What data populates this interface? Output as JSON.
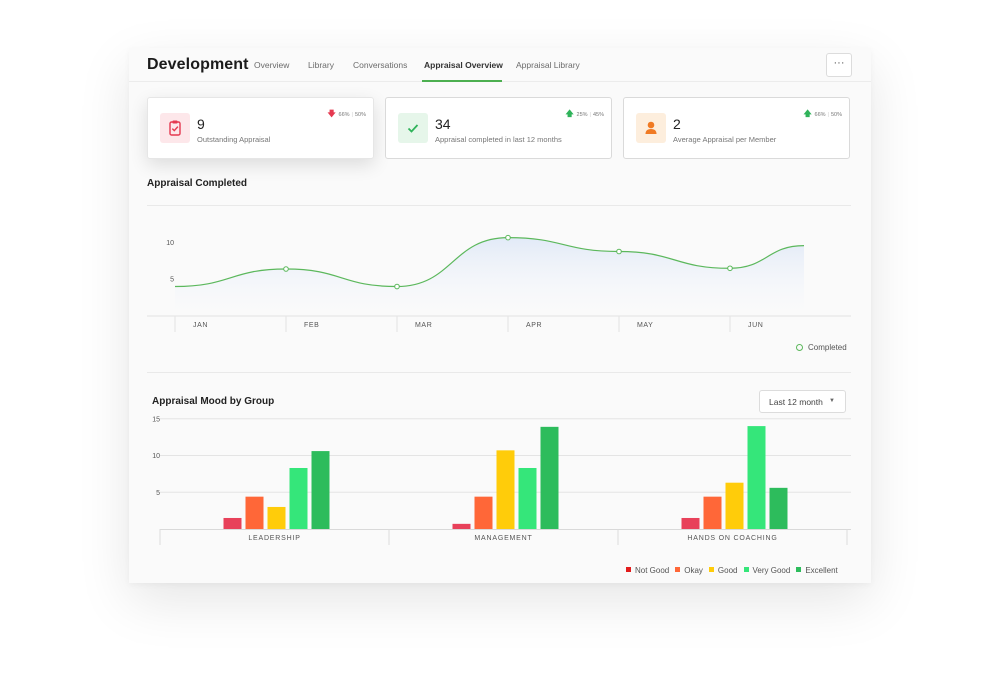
{
  "header": {
    "title": "Development",
    "more_label": "···",
    "tabs": [
      {
        "label": "Overview",
        "active": false
      },
      {
        "label": "Library",
        "active": false
      },
      {
        "label": "Conversations",
        "active": false
      },
      {
        "label": "Appraisal Overview",
        "active": true
      },
      {
        "label": "Appraisal Library",
        "active": false
      }
    ]
  },
  "kpis": [
    {
      "value": "9",
      "label": "Outstanding Appraisal",
      "trend_direction": "down",
      "trend_a": "66%",
      "trend_b": "50%",
      "icon": "clipboard-check-icon",
      "icon_color": "#e53950",
      "icon_bg": "#fde7ea"
    },
    {
      "value": "34",
      "label": "Appraisal completed in last 12 months",
      "trend_direction": "up",
      "trend_a": "25%",
      "trend_b": "45%",
      "icon": "checkmark-icon",
      "icon_color": "#2fb35a",
      "icon_bg": "#e6f6ea"
    },
    {
      "value": "2",
      "label": "Average Appraisal per Member",
      "trend_direction": "up",
      "trend_a": "66%",
      "trend_b": "50%",
      "icon": "person-icon",
      "icon_color": "#f07a23",
      "icon_bg": "#fdeedd"
    }
  ],
  "trend_colors": {
    "up": "#2fb35a",
    "down": "#e53950"
  },
  "line_section": {
    "title": "Appraisal Completed",
    "legend_label": "Completed"
  },
  "bar_section": {
    "title": "Appraisal Mood by Group",
    "filter_label": "Last 12 month"
  },
  "chart_data": [
    {
      "type": "line",
      "title": "Appraisal Completed",
      "x": [
        "JAN",
        "FEB",
        "MAR",
        "APR",
        "MAY",
        "JUN",
        ""
      ],
      "series": [
        {
          "name": "Completed",
          "values": [
            3.9,
            6.3,
            3.9,
            10.6,
            8.7,
            6.4,
            9.5
          ],
          "color": "#5cb85c"
        }
      ],
      "markers": [
        1,
        2,
        3,
        4,
        5
      ],
      "yticks": [
        5,
        10
      ],
      "ylim": [
        0,
        12
      ],
      "area_fill": true,
      "grid": false,
      "legend": "bottom-right"
    },
    {
      "type": "bar",
      "title": "Appraisal Mood by Group",
      "categories": [
        "LEADERSHIP",
        "MANAGEMENT",
        "HANDS ON COACHING"
      ],
      "series": [
        {
          "name": "Not Good",
          "values": [
            1.5,
            0.7,
            1.5
          ],
          "color": "#e8415a",
          "legend_color": "#e21c1c"
        },
        {
          "name": "Okay",
          "values": [
            4.4,
            4.4,
            4.4
          ],
          "color": "#ff6738"
        },
        {
          "name": "Good",
          "values": [
            3.0,
            10.7,
            6.3
          ],
          "color": "#ffcc0a"
        },
        {
          "name": "Very Good",
          "values": [
            8.3,
            8.3,
            14.0
          ],
          "color": "#35e67a"
        },
        {
          "name": "Excellent",
          "values": [
            10.6,
            13.9,
            5.6
          ],
          "color": "#2dbc5c"
        }
      ],
      "yticks": [
        5,
        10,
        15
      ],
      "ylim": [
        0,
        15
      ],
      "grid": true,
      "legend": "bottom-right"
    }
  ]
}
